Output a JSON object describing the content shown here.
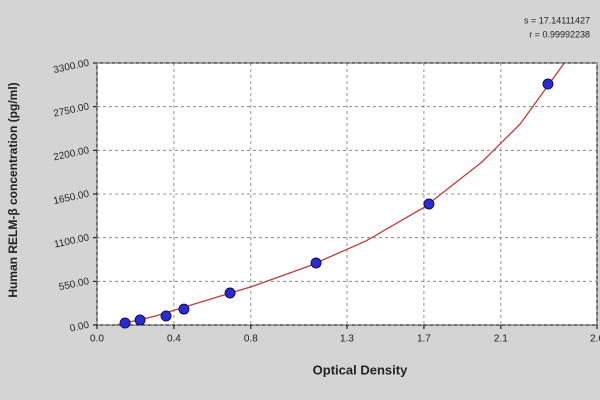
{
  "chart_data": {
    "type": "scatter",
    "x_label": "Optical Density",
    "y_label": "Human RELM-β concentration (pg/ml)",
    "annotations": [
      "s = 17.14111427",
      "r = 0.99992238"
    ],
    "xlim": [
      0,
      2.6
    ],
    "xticks": [
      {
        "value": 0,
        "label": "0.0"
      },
      0.4,
      0.8,
      1.3,
      1.7,
      2.1,
      2.6
    ],
    "ylim": [
      0,
      3300
    ],
    "yticks": [
      {
        "value": 0,
        "label": "0.00"
      },
      {
        "value": 550,
        "label": "550.00"
      },
      {
        "value": 1100,
        "label": "1100.00"
      },
      {
        "value": 1650,
        "label": "1650.00"
      },
      {
        "value": 2200,
        "label": "2200.00"
      },
      {
        "value": 2750,
        "label": "2750.00"
      },
      {
        "value": 3300,
        "label": "3300.00"
      }
    ],
    "grid": true,
    "series": [
      {
        "type": "scatter",
        "color": "#2a2ad0",
        "x": [
          0.146,
          0.224,
          0.359,
          0.452,
          0.692,
          1.139,
          1.726,
          2.345
        ],
        "values": [
          25,
          63,
          113,
          200,
          403,
          781,
          1524,
          3035
        ]
      },
      {
        "type": "line",
        "color": "#c03a3a",
        "x": [
          0.1,
          0.3,
          0.5,
          0.8,
          1.1,
          1.4,
          1.7,
          2.0,
          2.2,
          2.43
        ],
        "values": [
          0,
          110,
          260,
          480,
          740,
          1060,
          1480,
          2050,
          2530,
          3300
        ]
      }
    ]
  }
}
